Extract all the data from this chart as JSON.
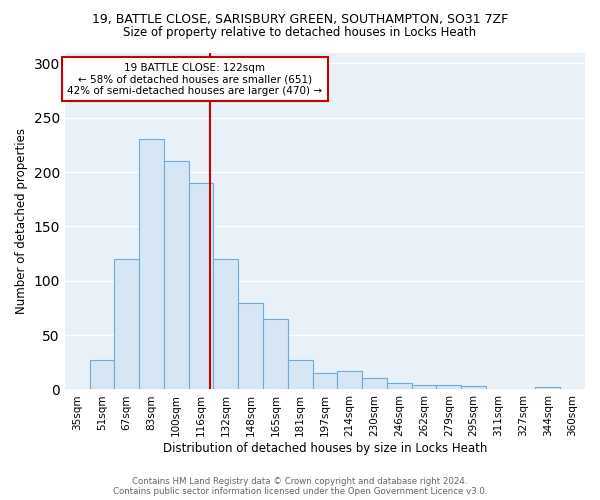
{
  "title1": "19, BATTLE CLOSE, SARISBURY GREEN, SOUTHAMPTON, SO31 7ZF",
  "title2": "Size of property relative to detached houses in Locks Heath",
  "xlabel": "Distribution of detached houses by size in Locks Heath",
  "ylabel": "Number of detached properties",
  "categories": [
    "35sqm",
    "51sqm",
    "67sqm",
    "83sqm",
    "100sqm",
    "116sqm",
    "132sqm",
    "148sqm",
    "165sqm",
    "181sqm",
    "197sqm",
    "214sqm",
    "230sqm",
    "246sqm",
    "262sqm",
    "279sqm",
    "295sqm",
    "311sqm",
    "327sqm",
    "344sqm",
    "360sqm"
  ],
  "values": [
    0,
    27,
    120,
    230,
    210,
    190,
    120,
    80,
    65,
    27,
    15,
    17,
    11,
    6,
    4,
    4,
    3,
    0,
    0,
    2,
    0
  ],
  "bar_color": "#d6e6f5",
  "bar_edge_color": "#6aaed6",
  "annotation_title": "19 BATTLE CLOSE: 122sqm",
  "annotation_line1": "← 58% of detached houses are smaller (651)",
  "annotation_line2": "42% of semi-detached houses are larger (470) →",
  "annotation_box_color": "#ffffff",
  "annotation_box_edge": "#cc0000",
  "vline_color": "#cc0000",
  "footer1": "Contains HM Land Registry data © Crown copyright and database right 2024.",
  "footer2": "Contains public sector information licensed under the Open Government Licence v3.0.",
  "ylim": [
    0,
    310
  ],
  "background_color": "#ffffff",
  "plot_bg_color": "#e8f0f8",
  "grid_color": "#ffffff"
}
